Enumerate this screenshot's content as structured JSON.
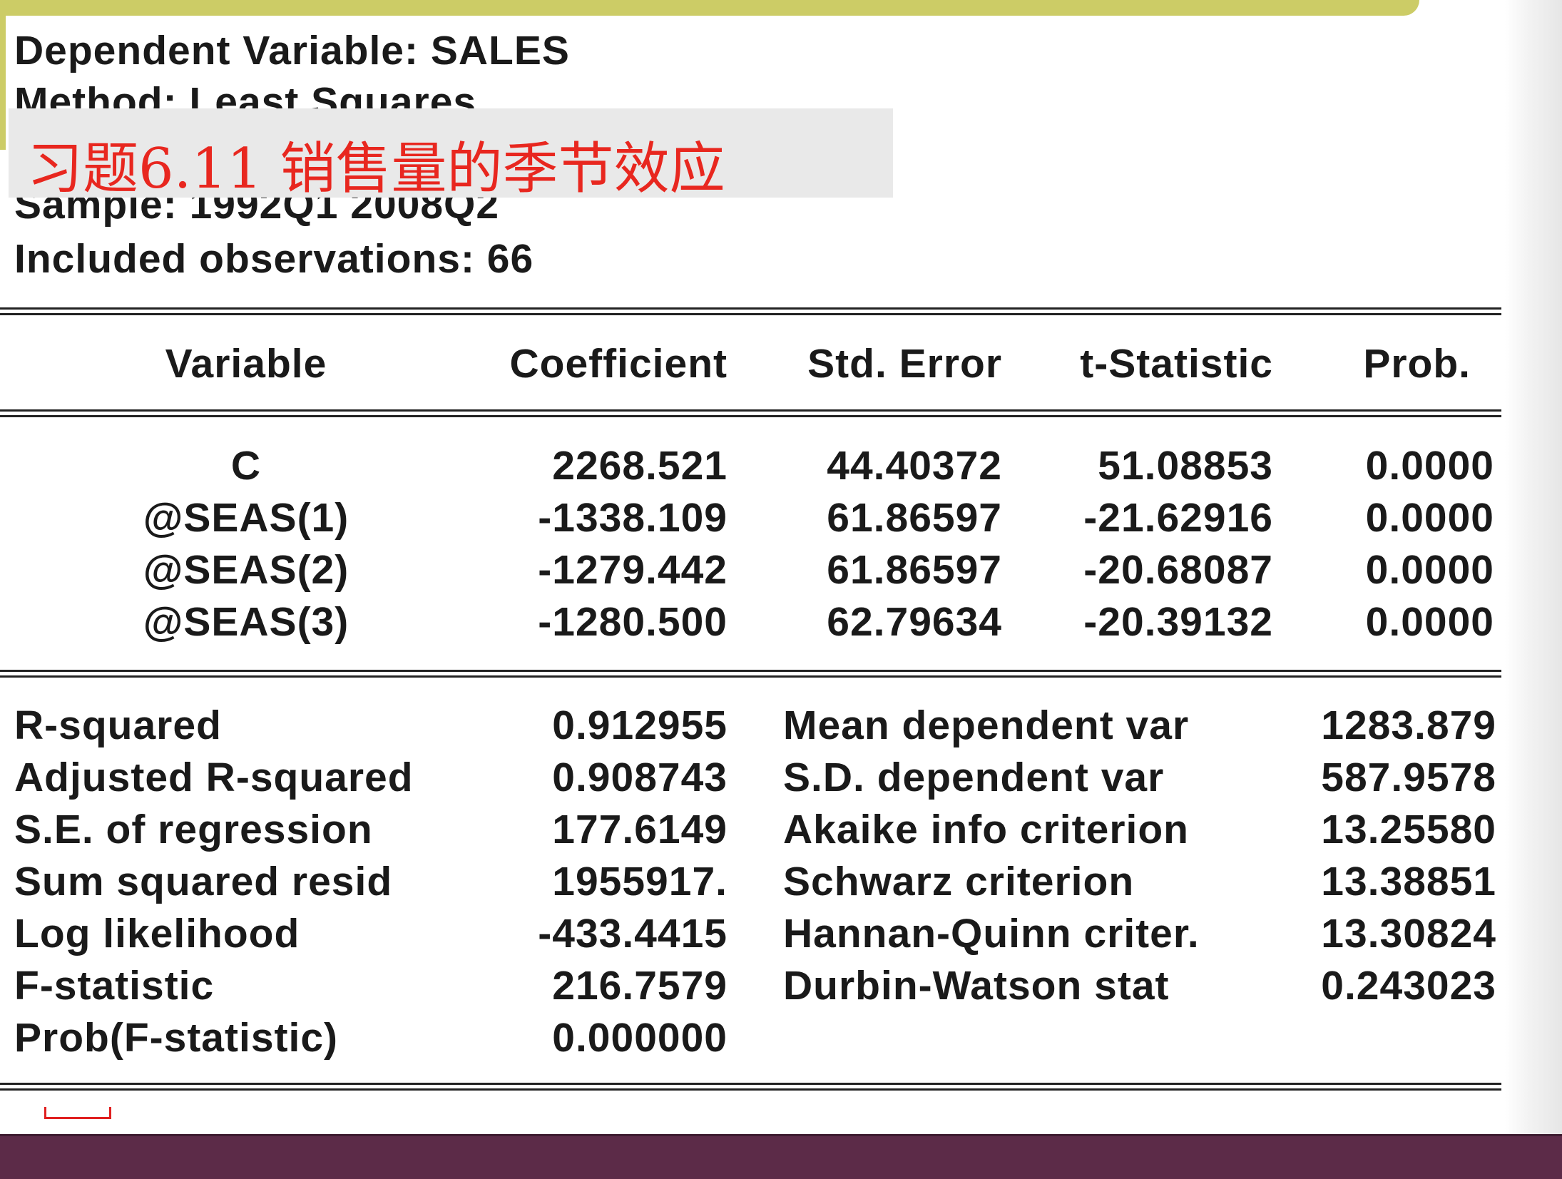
{
  "header": {
    "dependent": "Dependent Variable: SALES",
    "method": "Method: Least Squares",
    "sample": "Sample: 1992Q1 2008Q2",
    "observations": "Included observations: 66"
  },
  "slide_title": "习题6.11 销售量的季节效应",
  "table": {
    "columns": [
      "Variable",
      "Coefficient",
      "Std. Error",
      "t-Statistic",
      "Prob."
    ],
    "rows": [
      [
        "C",
        "2268.521",
        "44.40372",
        "51.08853",
        "0.0000"
      ],
      [
        "@SEAS(1)",
        "-1338.109",
        "61.86597",
        "-21.62916",
        "0.0000"
      ],
      [
        "@SEAS(2)",
        "-1279.442",
        "61.86597",
        "-20.68087",
        "0.0000"
      ],
      [
        "@SEAS(3)",
        "-1280.500",
        "62.79634",
        "-20.39132",
        "0.0000"
      ]
    ]
  },
  "stats": {
    "left": [
      [
        "R-squared",
        "0.912955"
      ],
      [
        "Adjusted R-squared",
        "0.908743"
      ],
      [
        "S.E. of regression",
        "177.6149"
      ],
      [
        "Sum squared resid",
        "1955917."
      ],
      [
        "Log likelihood",
        "-433.4415"
      ],
      [
        "F-statistic",
        "216.7579"
      ],
      [
        "Prob(F-statistic)",
        "0.000000"
      ]
    ],
    "right": [
      [
        "Mean dependent var",
        "1283.879"
      ],
      [
        "S.D. dependent var",
        "587.9578"
      ],
      [
        "Akaike info criterion",
        "13.25580"
      ],
      [
        "Schwarz criterion",
        "13.38851"
      ],
      [
        "Hannan-Quinn criter.",
        "13.30824"
      ],
      [
        "Durbin-Watson stat",
        "0.243023"
      ]
    ]
  },
  "colors": {
    "accent_bar": "#cccc66",
    "footer_bar": "#5c2b48",
    "title_red": "#e8271f"
  }
}
